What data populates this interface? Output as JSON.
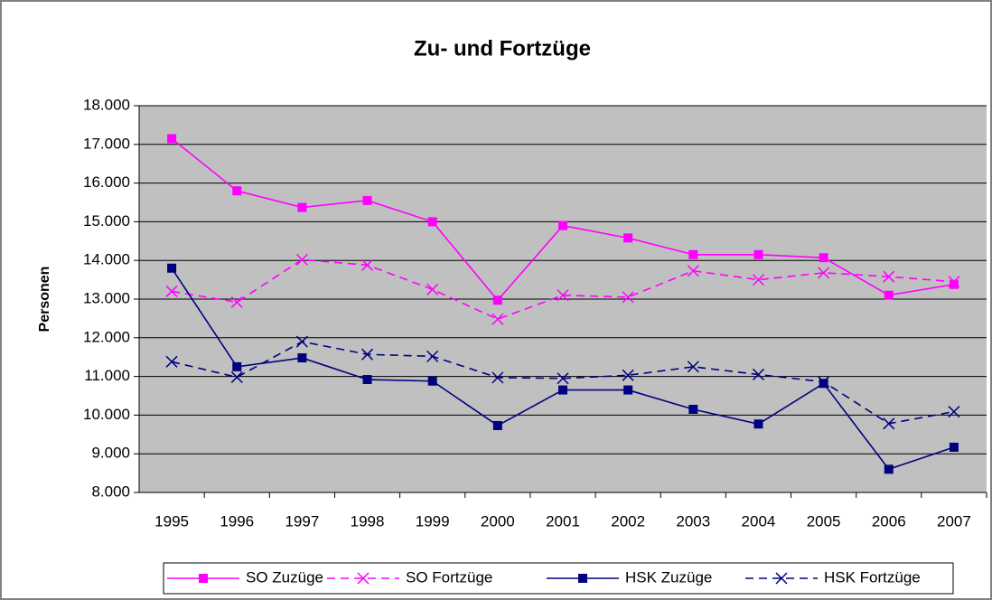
{
  "chart_data": {
    "type": "line",
    "title": "Zu- und Fortzüge",
    "y_label": "Personen",
    "categories": [
      "1995",
      "1996",
      "1997",
      "1998",
      "1999",
      "2000",
      "2001",
      "2002",
      "2003",
      "2004",
      "2005",
      "2006",
      "2007"
    ],
    "series": [
      {
        "name": "SO Zuzüge",
        "color": "#ff00ff",
        "dash": "solid",
        "marker": "square",
        "values": [
          17150,
          15800,
          15370,
          15550,
          15000,
          12970,
          14900,
          14580,
          14150,
          14150,
          14070,
          13100,
          13380
        ]
      },
      {
        "name": "SO Fortzüge",
        "color": "#ff00ff",
        "dash": "dashed",
        "marker": "x",
        "values": [
          13200,
          12920,
          14020,
          13880,
          13250,
          12480,
          13100,
          13050,
          13730,
          13500,
          13680,
          13580,
          13450
        ]
      },
      {
        "name": "HSK Zuzüge",
        "color": "#000080",
        "dash": "solid",
        "marker": "square",
        "values": [
          13800,
          11250,
          11480,
          10920,
          10880,
          9730,
          10650,
          10650,
          10150,
          9770,
          10820,
          8600,
          9170
        ]
      },
      {
        "name": "HSK Fortzüge",
        "color": "#000080",
        "dash": "dashed",
        "marker": "x",
        "values": [
          11380,
          10980,
          11900,
          11570,
          11520,
          10970,
          10950,
          11030,
          11250,
          11050,
          10860,
          9780,
          10090
        ]
      }
    ],
    "ylim": [
      8000,
      18000
    ],
    "yticks": [
      {
        "value": 8000,
        "label": "8.000"
      },
      {
        "value": 9000,
        "label": "9.000"
      },
      {
        "value": 10000,
        "label": "10.000"
      },
      {
        "value": 11000,
        "label": "11.000"
      },
      {
        "value": 12000,
        "label": "12.000"
      },
      {
        "value": 13000,
        "label": "13.000"
      },
      {
        "value": 14000,
        "label": "14.000"
      },
      {
        "value": 15000,
        "label": "15.000"
      },
      {
        "value": 16000,
        "label": "16.000"
      },
      {
        "value": 17000,
        "label": "17.000"
      },
      {
        "value": 18000,
        "label": "18.000"
      }
    ],
    "grid": true,
    "legend": "bottom"
  }
}
